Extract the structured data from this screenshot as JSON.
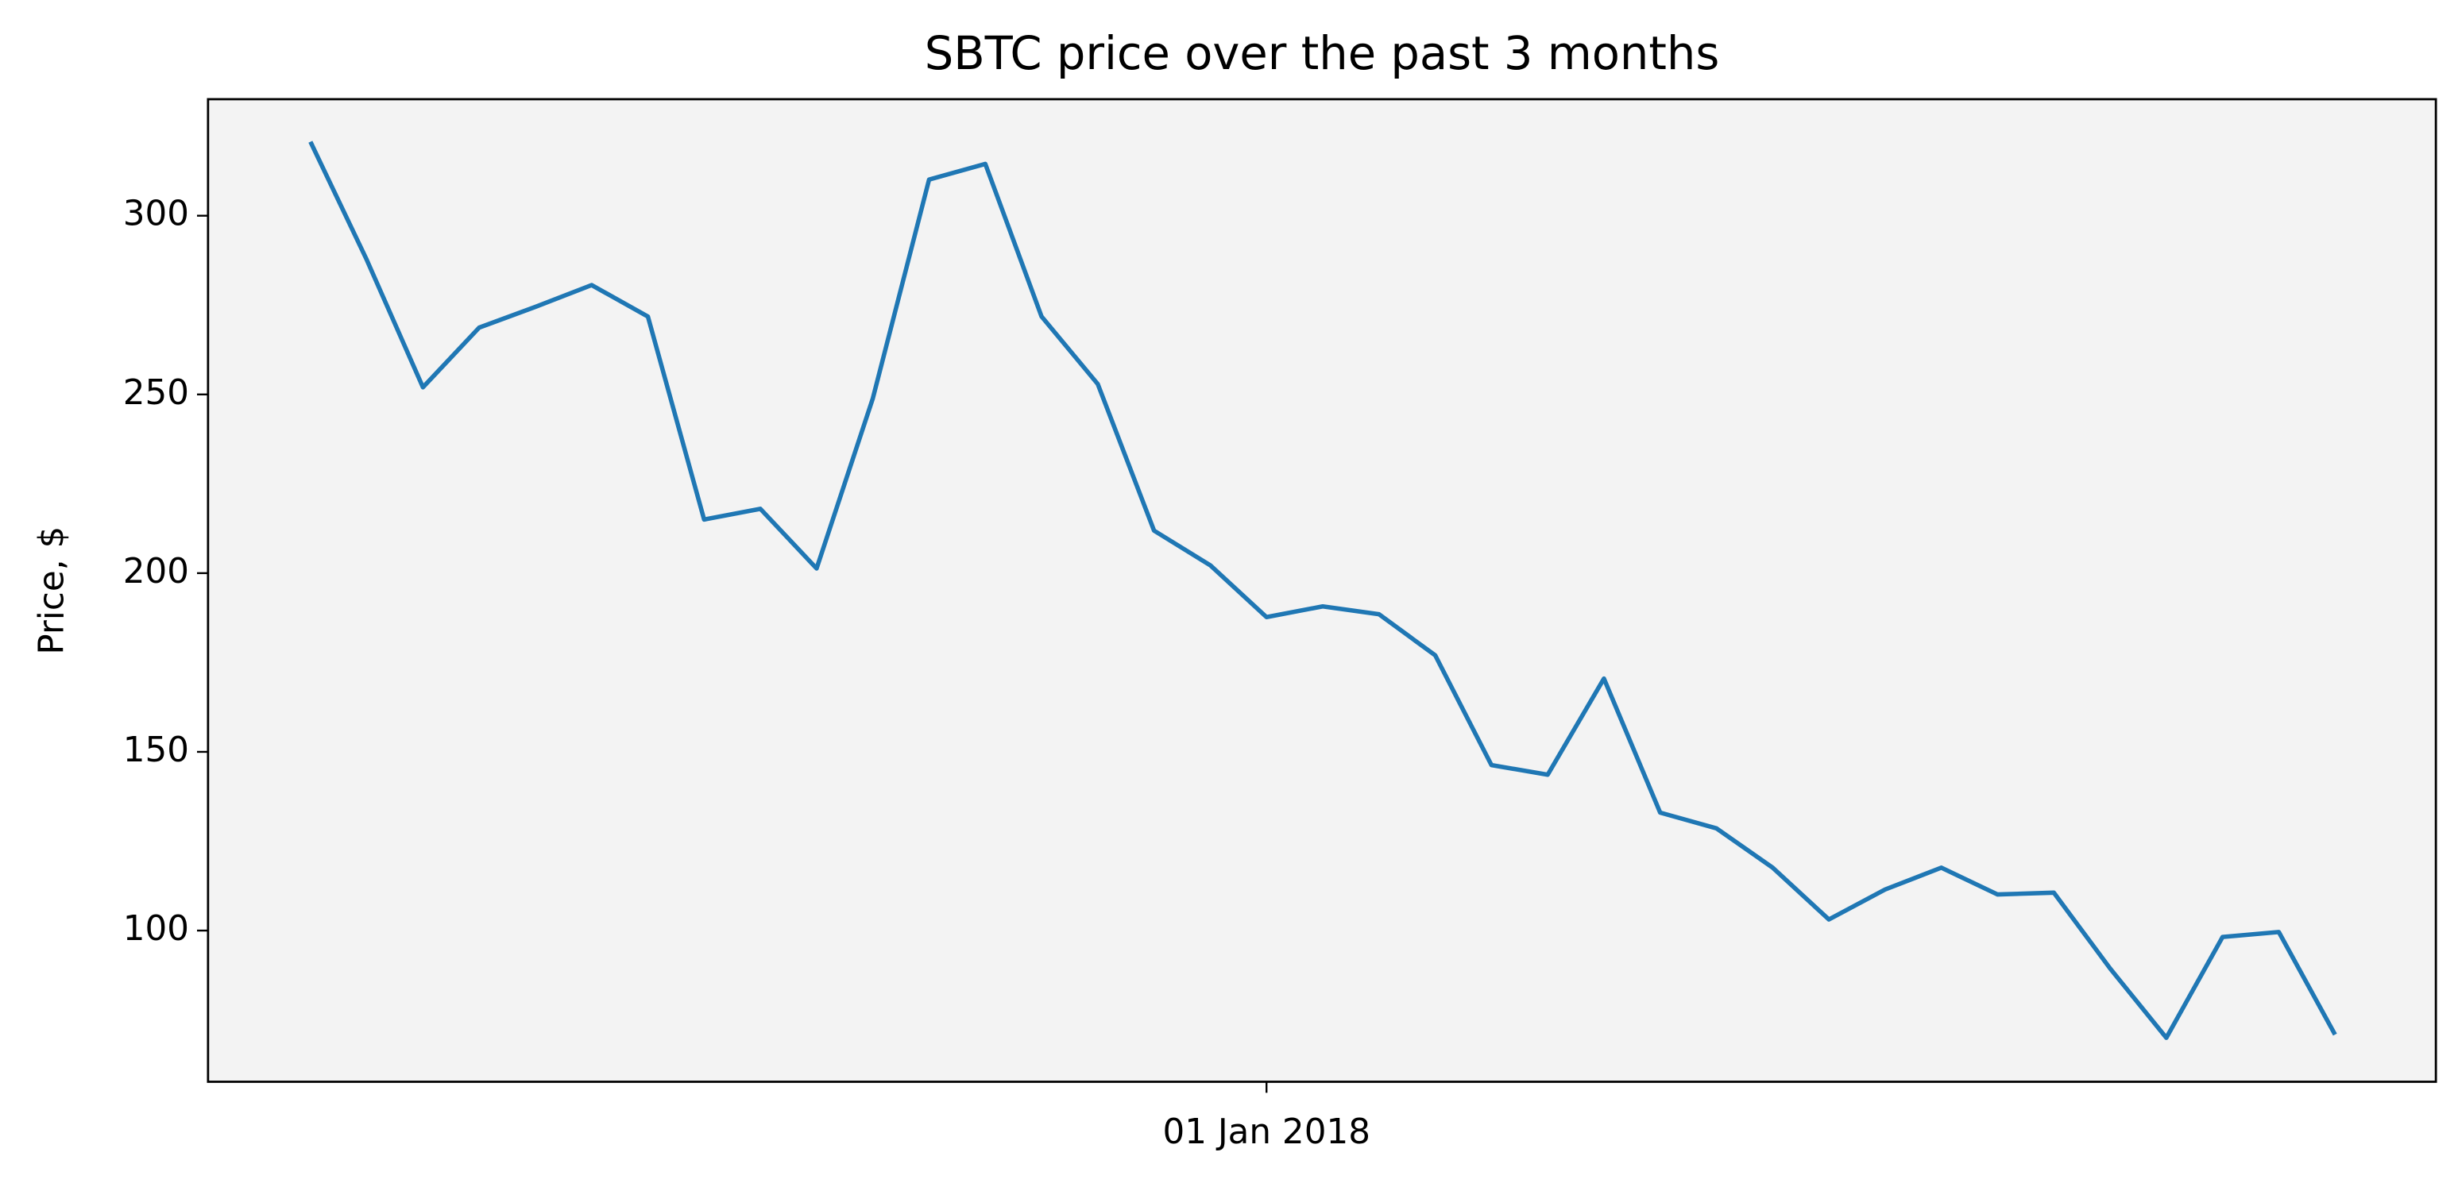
{
  "chart_data": {
    "type": "line",
    "title": "SBTC price over the past 3 months",
    "ylabel": "Price, $",
    "categories": [
      null,
      null,
      null,
      null,
      null,
      null,
      null,
      null,
      null,
      null,
      null,
      null,
      null,
      null,
      null,
      null,
      null,
      "01 Jan 2018",
      null,
      null,
      null,
      null,
      null,
      null,
      null,
      null,
      null,
      null,
      null,
      null,
      null,
      null,
      null,
      null,
      null,
      null,
      null
    ],
    "series": [
      {
        "name": "SBTC",
        "color": "#1f77b4",
        "values": [
          320.7,
          287.7,
          252,
          268.7,
          274.5,
          280.6,
          271.8,
          215,
          218,
          201.3,
          248.9,
          310.1,
          314.5,
          271.8,
          252.9,
          211.9,
          202.2,
          187.7,
          190.7,
          188.5,
          177,
          146.3,
          143.6,
          170.5,
          133,
          128.6,
          117.6,
          103.1,
          111.5,
          117.6,
          110.1,
          110.6,
          89.4,
          70,
          98.2,
          99.6,
          70.9
        ]
      }
    ],
    "ylim": [
      57.7,
      332.6
    ],
    "yticks": [
      100,
      150,
      200,
      250,
      300
    ],
    "grid": false,
    "background": "#f3f3f3"
  }
}
